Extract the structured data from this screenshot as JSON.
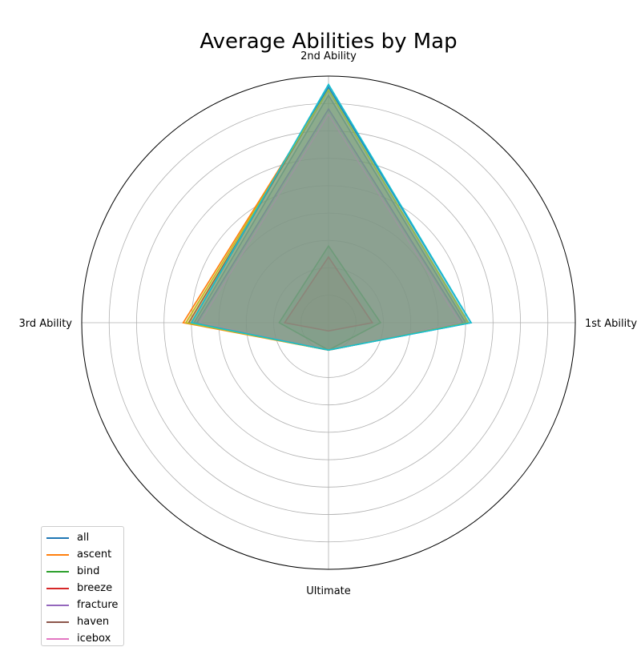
{
  "chart_data": {
    "type": "radar",
    "title": "Average Abilities by Map",
    "axes": [
      "2nd Ability",
      "1st Ability",
      "Ultimate",
      "3rd Ability"
    ],
    "rlim": [
      0,
      9
    ],
    "grid": true,
    "legend_position": "bottom-left",
    "series": [
      {
        "name": "all",
        "color": "#1f77b4",
        "values": [
          8.6,
          5.2,
          1.0,
          5.0
        ]
      },
      {
        "name": "ascent",
        "color": "#ff7f0e",
        "values": [
          8.5,
          5.1,
          1.0,
          5.3
        ]
      },
      {
        "name": "bind",
        "color": "#2ca02c",
        "values": [
          2.8,
          1.9,
          1.0,
          1.8
        ]
      },
      {
        "name": "breeze",
        "color": "#d62728",
        "values": [
          2.4,
          1.6,
          0.3,
          1.6
        ]
      },
      {
        "name": "fracture",
        "color": "#9467bd",
        "values": [
          7.8,
          4.9,
          1.0,
          4.8
        ]
      },
      {
        "name": "haven",
        "color": "#8c564b",
        "values": [
          8.5,
          5.1,
          1.0,
          5.1
        ]
      },
      {
        "name": "icebox",
        "color": "#e377c2",
        "values": [
          7.6,
          4.8,
          1.0,
          4.7
        ]
      },
      {
        "name": "",
        "color": "#7f7f7f",
        "values": [
          8.3,
          5.0,
          1.0,
          4.9
        ]
      },
      {
        "name": "",
        "color": "#bcbd22",
        "values": [
          8.5,
          5.1,
          1.0,
          5.2
        ]
      },
      {
        "name": "",
        "color": "#17becf",
        "values": [
          8.7,
          5.2,
          1.0,
          5.0
        ]
      }
    ]
  }
}
